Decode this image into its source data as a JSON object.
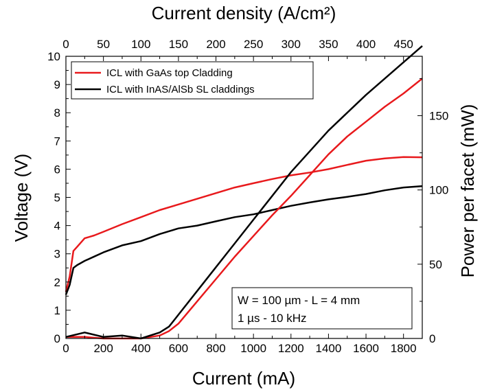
{
  "chart_data": {
    "type": "line",
    "title": "",
    "xlabel": "Current (mA)",
    "x2label": "Current density (A/cm²)",
    "ylabel": "Voltage (V)",
    "y2label": "Power per facet (mW)",
    "xlim": [
      0,
      1900
    ],
    "x2lim": [
      0,
      475
    ],
    "ylim": [
      0,
      10
    ],
    "y2lim": [
      0,
      190
    ],
    "x_ticks": [
      "0",
      "200",
      "400",
      "600",
      "800",
      "1000",
      "1200",
      "1400",
      "1600",
      "1800"
    ],
    "x2_ticks": [
      "0",
      "50",
      "100",
      "150",
      "200",
      "250",
      "300",
      "350",
      "400",
      "450"
    ],
    "y_ticks": [
      "0",
      "1",
      "2",
      "3",
      "4",
      "5",
      "6",
      "7",
      "8",
      "9",
      "10"
    ],
    "y2_ticks": [
      "0",
      "50",
      "100",
      "150"
    ],
    "grid": false,
    "legend_position": "top-left",
    "annotation": [
      "W = 100 µm - L = 4 mm",
      "1 µs - 10 kHz"
    ],
    "series": [
      {
        "name": "ICL with GaAs top Cladding",
        "color": "#e8191c",
        "axis": "left",
        "x": [
          0,
          20,
          40,
          60,
          100,
          150,
          200,
          300,
          400,
          500,
          600,
          700,
          800,
          900,
          1000,
          1100,
          1200,
          1300,
          1400,
          1500,
          1600,
          1700,
          1800,
          1900
        ],
        "y": [
          1.65,
          2.2,
          3.1,
          3.25,
          3.55,
          3.65,
          3.78,
          4.05,
          4.3,
          4.55,
          4.75,
          4.95,
          5.15,
          5.35,
          5.5,
          5.65,
          5.78,
          5.88,
          6.0,
          6.15,
          6.3,
          6.38,
          6.43,
          6.42
        ]
      },
      {
        "name": "ICL with InAS/AlSb SL claddings",
        "color": "#000000",
        "axis": "left",
        "x": [
          0,
          20,
          40,
          60,
          100,
          150,
          200,
          300,
          400,
          500,
          600,
          700,
          800,
          900,
          1000,
          1100,
          1200,
          1300,
          1400,
          1500,
          1600,
          1700,
          1800,
          1900
        ],
        "y": [
          1.55,
          1.9,
          2.5,
          2.6,
          2.75,
          2.9,
          3.05,
          3.3,
          3.45,
          3.7,
          3.9,
          4.0,
          4.15,
          4.3,
          4.4,
          4.55,
          4.7,
          4.82,
          4.93,
          5.02,
          5.12,
          5.25,
          5.35,
          5.4
        ]
      },
      {
        "name": "ICL with GaAs top Cladding",
        "color": "#e8191c",
        "axis": "right",
        "x": [
          0,
          100,
          200,
          300,
          400,
          500,
          550,
          600,
          700,
          800,
          900,
          1000,
          1100,
          1200,
          1300,
          1400,
          1500,
          1600,
          1700,
          1800,
          1900
        ],
        "y": [
          1,
          1,
          0,
          0,
          0,
          2,
          5,
          10,
          25,
          40,
          55,
          69,
          83,
          96,
          110,
          124,
          136,
          146,
          156,
          165,
          175
        ]
      },
      {
        "name": "ICL with InAS/AlSb SL claddings",
        "color": "#000000",
        "axis": "right",
        "x": [
          0,
          100,
          200,
          300,
          400,
          500,
          550,
          600,
          700,
          800,
          900,
          1000,
          1100,
          1200,
          1300,
          1400,
          1500,
          1600,
          1700,
          1800,
          1900
        ],
        "y": [
          1,
          4,
          1,
          2,
          0,
          4,
          8,
          16,
          32,
          48,
          64,
          80,
          96,
          112,
          126,
          140,
          152,
          164,
          175,
          186,
          197
        ]
      }
    ]
  }
}
